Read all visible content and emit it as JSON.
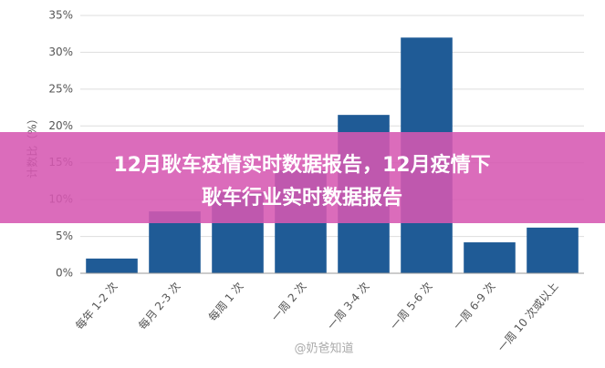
{
  "chart_data": {
    "type": "bar",
    "ylabel": "计数比（%）",
    "categories": [
      "每年 1-2 次",
      "每月 2-3 次",
      "每周 1 次",
      "一周 2 次",
      "一周 3-4 次",
      "一周 5-6 次",
      "一周 6-9 次",
      "一周 10 次或以上"
    ],
    "values": [
      2,
      8.4,
      11,
      14,
      21.5,
      32,
      4.2,
      6.2
    ],
    "color": "#1f5b96",
    "ylim": [
      0,
      35
    ],
    "yticks": [
      {
        "value": 0,
        "label": "0%"
      },
      {
        "value": 5,
        "label": "5%"
      },
      {
        "value": 10,
        "label": "10%"
      },
      {
        "value": 15,
        "label": "15%"
      },
      {
        "value": 20,
        "label": "20%"
      },
      {
        "value": 25,
        "label": "25%"
      },
      {
        "value": 30,
        "label": "30%"
      },
      {
        "value": 35,
        "label": "35%"
      }
    ],
    "grid": true
  },
  "banner": {
    "lines": [
      "12月耿车疫情实时数据报告，12月疫情下",
      "耿车行业实时数据报告"
    ]
  },
  "watermark": "@奶爸知道"
}
